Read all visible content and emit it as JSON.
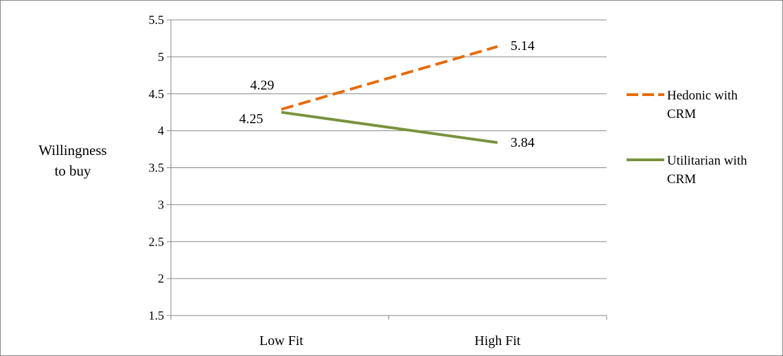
{
  "chart_data": {
    "type": "line",
    "categories": [
      "Low Fit",
      "High Fit"
    ],
    "ylabel_lines": [
      "Willingness",
      "to buy"
    ],
    "ylim": [
      1.5,
      5.5
    ],
    "yticks": [
      "1.5",
      "2",
      "2.5",
      "3",
      "3.5",
      "4",
      "4.5",
      "5",
      "5.5"
    ],
    "grid": true,
    "legend_position": "right",
    "series": [
      {
        "name_lines": [
          "Hedonic with",
          "CRM"
        ],
        "values": [
          4.29,
          5.14
        ],
        "labels": [
          "4.29",
          "5.14"
        ],
        "color": "#E46C0A",
        "dash": "dashed"
      },
      {
        "name_lines": [
          "Utilitarian with",
          "CRM"
        ],
        "values": [
          4.25,
          3.84
        ],
        "labels": [
          "4.25",
          "3.84"
        ],
        "color": "#77933C",
        "dash": "solid"
      }
    ]
  }
}
